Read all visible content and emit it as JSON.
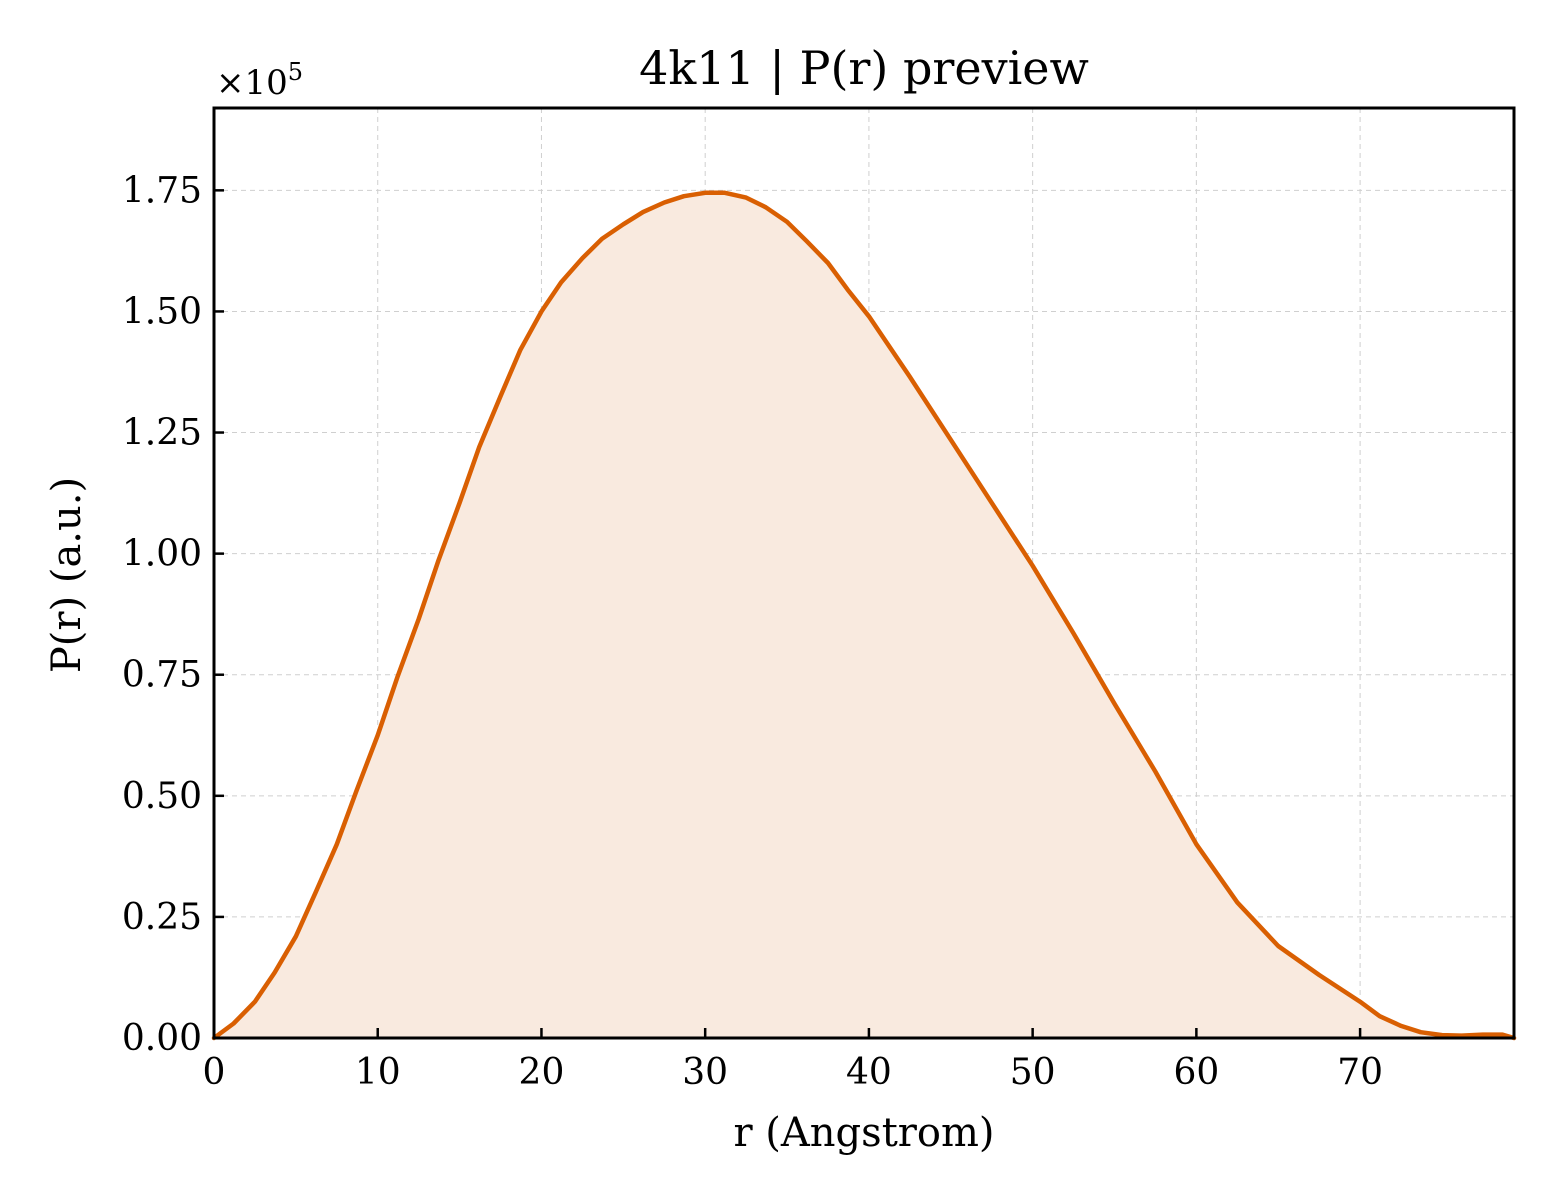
{
  "chart_data": {
    "type": "area",
    "title": "4k11 | P(r) preview",
    "xlabel": "r (Angstrom)",
    "ylabel": "P(r) (a.u.)",
    "y_offset_label_base": "×10",
    "y_offset_label_exp": "5",
    "xlim": [
      0,
      79.4
    ],
    "ylim": [
      0,
      1.92
    ],
    "xticks": [
      0,
      10,
      20,
      30,
      40,
      50,
      60,
      70
    ],
    "xtick_labels": [
      "0",
      "10",
      "20",
      "30",
      "40",
      "50",
      "60",
      "70"
    ],
    "yticks": [
      0,
      0.25,
      0.5,
      0.75,
      1.0,
      1.25,
      1.5,
      1.75
    ],
    "ytick_labels": [
      "0.00",
      "0.25",
      "0.50",
      "0.75",
      "1.00",
      "1.25",
      "1.50",
      "1.75"
    ],
    "grid": true,
    "colors": {
      "line": "#d95f02",
      "fill": "#f9eadf"
    },
    "series": [
      {
        "x": [
          0,
          1.2,
          2.5,
          3.7,
          5,
          6.2,
          7.5,
          8.7,
          10,
          11.2,
          12.5,
          13.7,
          15,
          16.2,
          17.5,
          18.7,
          20,
          21.2,
          22.5,
          23.7,
          25,
          26.2,
          27.5,
          28.7,
          30,
          31.2,
          32.5,
          33.7,
          35,
          36.2,
          37.5,
          38.7,
          40,
          42.5,
          45,
          47.5,
          50,
          52.5,
          55,
          57.5,
          60,
          62.5,
          65,
          67.5,
          70,
          71.2,
          72.5,
          73.7,
          75,
          76.2,
          77.5,
          78.7,
          79.4
        ],
        "values": [
          0.0,
          0.03,
          0.075,
          0.135,
          0.21,
          0.3,
          0.4,
          0.51,
          0.625,
          0.745,
          0.865,
          0.985,
          1.105,
          1.22,
          1.325,
          1.42,
          1.5,
          1.56,
          1.61,
          1.65,
          1.68,
          1.705,
          1.725,
          1.738,
          1.745,
          1.745,
          1.735,
          1.715,
          1.685,
          1.645,
          1.6,
          1.545,
          1.49,
          1.365,
          1.235,
          1.105,
          0.975,
          0.835,
          0.69,
          0.55,
          0.4,
          0.28,
          0.19,
          0.13,
          0.075,
          0.045,
          0.025,
          0.012,
          0.006,
          0.005,
          0.007,
          0.007,
          0.0
        ]
      }
    ]
  }
}
